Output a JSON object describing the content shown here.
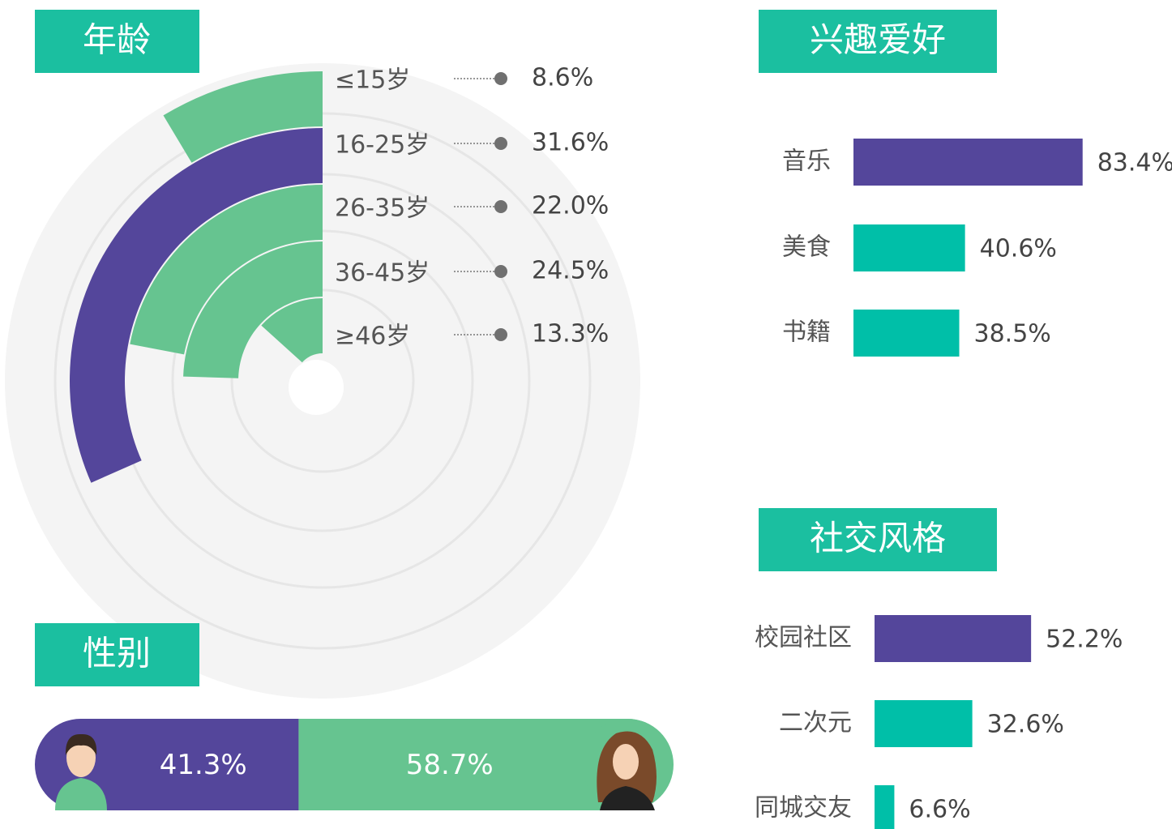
{
  "chart_data": [
    {
      "type": "radial_bar",
      "title": "年龄",
      "categories": [
        "≤15岁",
        "16-25岁",
        "26-35岁",
        "36-45岁",
        "≥46岁"
      ],
      "values": [
        8.6,
        31.6,
        22.0,
        24.5,
        13.3
      ],
      "value_labels": [
        "8.6%",
        "31.6%",
        "22.0%",
        "24.5%",
        "13.3%"
      ],
      "colors": [
        "#66c490",
        "#54469b",
        "#66c490",
        "#66c490",
        "#66c490"
      ]
    },
    {
      "type": "pill_bar",
      "title": "性别",
      "values": [
        41.3,
        58.7
      ],
      "value_labels": [
        "41.3%",
        "58.7%"
      ],
      "colors": [
        "#54469b",
        "#66c490"
      ]
    },
    {
      "type": "hbar",
      "title": "兴趣爱好",
      "categories": [
        "音乐",
        "美食",
        "书籍"
      ],
      "values": [
        83.4,
        40.6,
        38.5
      ],
      "value_labels": [
        "83.4%",
        "40.6%",
        "38.5%"
      ],
      "colors": [
        "#54469b",
        "#00bfa8",
        "#00bfa8"
      ]
    },
    {
      "type": "hbar",
      "title": "社交风格",
      "categories": [
        "校园社区",
        "二次元",
        "同城交友"
      ],
      "values": [
        52.2,
        32.6,
        6.6
      ],
      "value_labels": [
        "52.2%",
        "32.6%",
        "6.6%"
      ],
      "colors": [
        "#54469b",
        "#00bfa8",
        "#00bfa8"
      ]
    }
  ]
}
